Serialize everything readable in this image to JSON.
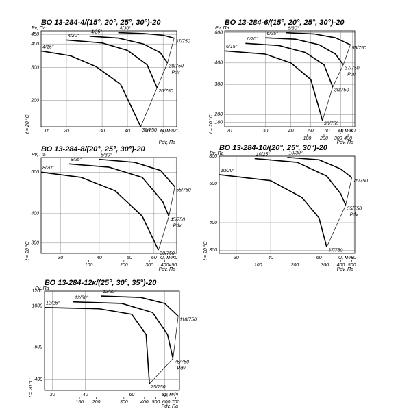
{
  "chart_data": [
    {
      "type": "line",
      "title": "ВО 13-284-4/(15°, 20°, 25°, 30°)-20",
      "y_label": "Pv, Па",
      "x_label": "Q, м³/ч",
      "x2_label": "Pdv, Па",
      "note": "t = 20 °C",
      "pdv_label": "Pdv",
      "color": "#000000",
      "ylog": true,
      "xlog": true,
      "grid": true,
      "ylim": [
        145,
        470
      ],
      "yticks": [
        200,
        300,
        400,
        450
      ],
      "xlim": [
        15,
        70
      ],
      "xticks": [
        16,
        20,
        30,
        40,
        50,
        60,
        70
      ],
      "series": [
        {
          "name": "4/15°",
          "end_label": "30/750",
          "x": [
            15,
            21,
            28,
            37,
            46.5
          ],
          "values": [
            367,
            346,
            303,
            244,
            145
          ]
        },
        {
          "name": "4/20°",
          "end_label": "20/750",
          "x": [
            20,
            30,
            40,
            50,
            56
          ],
          "values": [
            420,
            405,
            370,
            310,
            234
          ]
        },
        {
          "name": "4/25°",
          "end_label": "30/750",
          "x": [
            26,
            36,
            48,
            58,
            63
          ],
          "values": [
            440,
            430,
            400,
            360,
            317
          ]
        },
        {
          "name": "4/30°",
          "end_label": "37/750",
          "x": [
            36,
            48,
            60,
            68
          ],
          "values": [
            460,
            455,
            445,
            430
          ]
        }
      ]
    },
    {
      "type": "line",
      "title": "ВО 13-284-6/(15°, 20°, 25°, 30°)-20",
      "y_label": "Pv, Па",
      "x_label": "Q, м³/ч",
      "x2_label": "Pdv, Па",
      "note": "t = 20 °C",
      "pdv_label": "Pdv",
      "color": "#000000",
      "ylog": true,
      "xlog": true,
      "grid": true,
      "ylim": [
        170,
        615
      ],
      "yticks": [
        180,
        200,
        300,
        400,
        600
      ],
      "xlim": [
        19,
        82
      ],
      "xticks": [
        20,
        30,
        40,
        50,
        60,
        70,
        80
      ],
      "x2ticks": [
        {
          "value": 48,
          "label": "100"
        },
        {
          "value": 58,
          "label": "200"
        },
        {
          "value": 68,
          "label": "300"
        },
        {
          "value": 76,
          "label": "400"
        }
      ],
      "series": [
        {
          "name": "6/15°",
          "end_label": "30/750",
          "x": [
            19,
            30,
            40,
            50,
            57
          ],
          "values": [
            470,
            450,
            400,
            320,
            185
          ]
        },
        {
          "name": "6/20°",
          "end_label": "30/750",
          "x": [
            24,
            35,
            47,
            58,
            64
          ],
          "values": [
            520,
            505,
            460,
            390,
            290
          ]
        },
        {
          "name": "6/25°",
          "end_label": "37/750",
          "x": [
            30,
            42,
            55,
            66,
            72
          ],
          "values": [
            560,
            550,
            510,
            450,
            390
          ]
        },
        {
          "name": "6/30°",
          "end_label": "55/750",
          "x": [
            38,
            52,
            66,
            78
          ],
          "values": [
            600,
            590,
            560,
            510
          ]
        }
      ]
    },
    {
      "type": "line",
      "title": "ВО 13-284-8/(20°, 25°, 30°)-20",
      "y_label": "Pv, Па",
      "x_label": "Q, м³/ч",
      "x2_label": "Pdv, Па",
      "note": "t = 20 °C",
      "pdv_label": "Pdv",
      "color": "#000000",
      "ylog": true,
      "xlog": true,
      "grid": true,
      "ylim": [
        271,
        692
      ],
      "yticks": [
        300,
        400,
        600
      ],
      "xlim": [
        26,
        71
      ],
      "xticks": [
        30,
        40,
        50,
        60,
        70
      ],
      "x2ticks": [
        {
          "value": 37,
          "label": "100"
        },
        {
          "value": 48,
          "label": "200"
        },
        {
          "value": 58,
          "label": "300"
        },
        {
          "value": 65,
          "label": "400"
        },
        {
          "value": 69,
          "label": "450"
        }
      ],
      "series": [
        {
          "name": "8/20°",
          "end_label": "30/750",
          "x": [
            26,
            35,
            45,
            55,
            62
          ],
          "values": [
            600,
            570,
            500,
            390,
            280
          ]
        },
        {
          "name": "8/25°",
          "end_label": "45/750",
          "x": [
            32,
            43,
            55,
            64,
            67
          ],
          "values": [
            650,
            630,
            570,
            450,
            390
          ]
        },
        {
          "name": "8/30°",
          "end_label": "55/750",
          "x": [
            40,
            52,
            63,
            70
          ],
          "values": [
            680,
            660,
            610,
            520
          ]
        }
      ]
    },
    {
      "type": "line",
      "title": "ВО 13-284-10/(20°, 25°, 30°)-20",
      "y_label": "Pv, Па",
      "x_label": "Q, м³/ч",
      "x2_label": "Pdv, Па",
      "note": "t = 20 °C",
      "pdv_label": "Pdv",
      "color": "#000000",
      "ylog": true,
      "xlog": true,
      "grid": true,
      "ylim": [
        290,
        800
      ],
      "yticks": [
        300,
        400,
        600,
        800
      ],
      "xlim": [
        26,
        81
      ],
      "xticks": [
        30,
        40,
        60,
        80
      ],
      "x2ticks": [
        {
          "value": 36,
          "label": "100"
        },
        {
          "value": 49,
          "label": "200"
        },
        {
          "value": 63,
          "label": "300"
        },
        {
          "value": 72,
          "label": "400"
        },
        {
          "value": 79,
          "label": "500"
        }
      ],
      "series": [
        {
          "name": "10/20°",
          "end_label": "37/750",
          "x": [
            26,
            40,
            52,
            60,
            64
          ],
          "values": [
            660,
            620,
            520,
            420,
            310
          ]
        },
        {
          "name": "10/25°",
          "end_label": "55/750",
          "x": [
            35,
            50,
            64,
            72,
            75
          ],
          "values": [
            780,
            750,
            650,
            540,
            480
          ]
        },
        {
          "name": "10/30°",
          "end_label": "75/750",
          "x": [
            46,
            60,
            72,
            79
          ],
          "values": [
            790,
            770,
            700,
            640
          ]
        }
      ]
    },
    {
      "type": "line",
      "title": "ВО 13-284-12к/(25°, 30°, 35°)-20",
      "y_label": "Pv, Па",
      "x_label": "Q, м³/ч",
      "x2_label": "Pdv, Па",
      "note": "t = 20 °C",
      "pdv_label": "Pdv",
      "color": "#000000",
      "ylog": true,
      "xlog": true,
      "grid": true,
      "ylim": [
        350,
        1200
      ],
      "yticks": [
        400,
        600,
        1000,
        1200
      ],
      "xlim": [
        28,
        91
      ],
      "xticks": [
        30,
        40,
        60,
        80
      ],
      "x2ticks": [
        {
          "value": 38,
          "label": "150"
        },
        {
          "value": 44,
          "label": "200"
        },
        {
          "value": 56,
          "label": "300"
        },
        {
          "value": 67,
          "label": "400"
        },
        {
          "value": 74,
          "label": "500"
        },
        {
          "value": 81,
          "label": "600"
        },
        {
          "value": 88,
          "label": "700"
        }
      ],
      "series": [
        {
          "name": "12/25°",
          "end_label": "75/750",
          "x": [
            28,
            45,
            60,
            68,
            70
          ],
          "values": [
            980,
            965,
            900,
            700,
            380
          ]
        },
        {
          "name": "12/30°",
          "end_label": "75/750",
          "x": [
            36,
            55,
            72,
            82,
            86
          ],
          "values": [
            1050,
            1030,
            920,
            700,
            520
          ]
        },
        {
          "name": "12/35°",
          "end_label": "118/750",
          "x": [
            46,
            65,
            80,
            90
          ],
          "values": [
            1130,
            1110,
            1030,
            880
          ]
        }
      ]
    }
  ]
}
